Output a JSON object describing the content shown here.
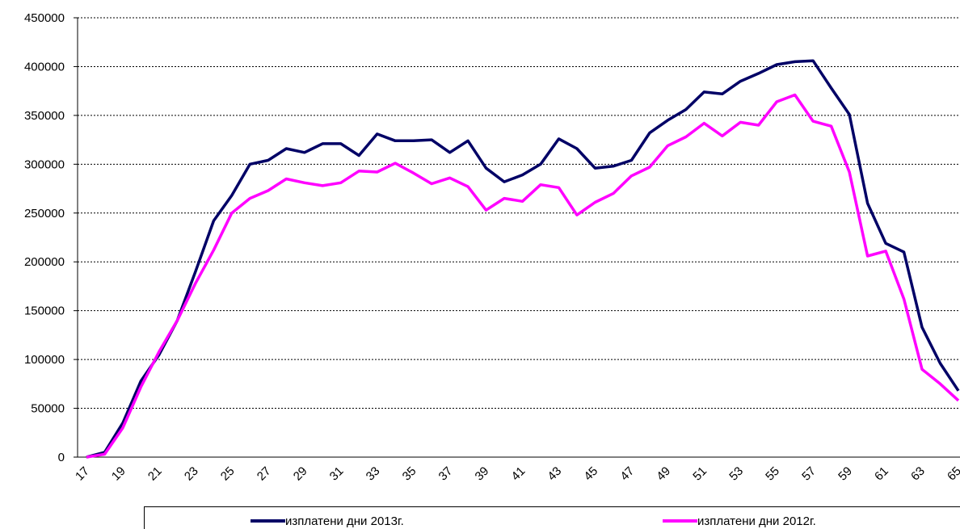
{
  "chart_data": {
    "type": "line",
    "categories": [
      "17",
      null,
      "19",
      null,
      "21",
      null,
      "23",
      null,
      "25",
      null,
      "27",
      null,
      "29",
      null,
      "31",
      null,
      "33",
      null,
      "35",
      null,
      "37",
      null,
      "39",
      null,
      "41",
      null,
      "43",
      null,
      "45",
      null,
      "47",
      null,
      "49",
      null,
      "51",
      null,
      "53",
      null,
      "55",
      null,
      "57",
      null,
      "59",
      null,
      "61",
      null,
      "63",
      null,
      "65"
    ],
    "series": [
      {
        "name": "изплатени дни 2013г.",
        "color": "#000066",
        "values": [
          0,
          5000,
          35000,
          78000,
          105000,
          140000,
          190000,
          242000,
          268000,
          300000,
          304000,
          316000,
          312000,
          321000,
          321000,
          309000,
          331000,
          324000,
          324000,
          325000,
          312000,
          324000,
          296000,
          282000,
          289000,
          300000,
          326000,
          316000,
          296000,
          298000,
          304000,
          332000,
          345000,
          356000,
          374000,
          372000,
          385000,
          393000,
          402000,
          405000,
          406000,
          378000,
          351000,
          260000,
          219000,
          210000,
          133000,
          96000,
          68000
        ]
      },
      {
        "name": "изплатени дни 2012г.",
        "color": "#ff00ff",
        "values": [
          0,
          3000,
          30000,
          72000,
          108000,
          140000,
          178000,
          212000,
          250000,
          265000,
          273000,
          285000,
          281000,
          278000,
          281000,
          293000,
          292000,
          301000,
          291000,
          280000,
          286000,
          277000,
          253000,
          265000,
          262000,
          279000,
          276000,
          248000,
          261000,
          270000,
          288000,
          297000,
          319000,
          328000,
          342000,
          329000,
          343000,
          340000,
          364000,
          371000,
          344000,
          339000,
          292000,
          206000,
          211000,
          162000,
          90000,
          75000,
          58000
        ]
      }
    ],
    "ylim": [
      0,
      450000
    ],
    "yticks": [
      0,
      50000,
      100000,
      150000,
      200000,
      250000,
      300000,
      350000,
      400000,
      450000
    ],
    "grid": true,
    "legend": "bottom"
  }
}
